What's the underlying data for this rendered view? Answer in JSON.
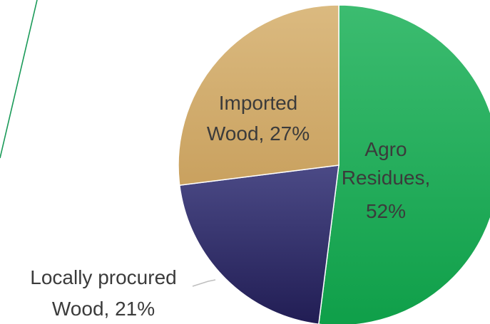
{
  "chart_data": {
    "type": "pie",
    "slices": [
      {
        "label_lines": [
          "Agro",
          "Residues,",
          "52%"
        ],
        "category": "Agro Residues",
        "value": 52,
        "color": "#17a955"
      },
      {
        "label_lines": [
          "Locally procured",
          "Wood, 21%"
        ],
        "category": "Locally procured Wood",
        "value": 21,
        "color": "#2d2a62"
      },
      {
        "label_lines": [
          "Imported",
          "Wood, 27%"
        ],
        "category": "Imported Wood",
        "value": 27,
        "color": "#d2ad6c"
      }
    ],
    "accent_line_color": "#1a9a58",
    "leader_line_color": "#bfbfbf"
  }
}
